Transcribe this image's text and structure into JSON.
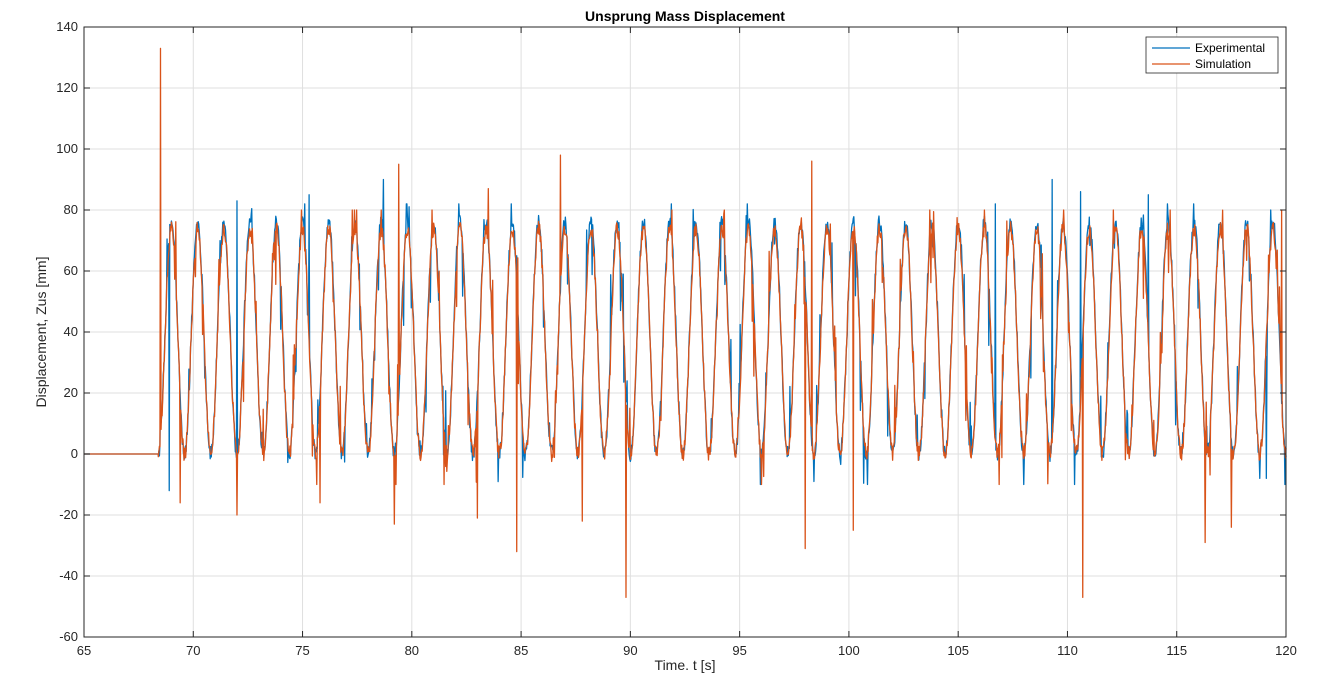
{
  "chart_data": {
    "type": "line",
    "title": "Unsprung Mass Displacement",
    "xlabel": "Time. t [s]",
    "ylabel": "Displacement, Zus [mm]",
    "xlim": [
      65,
      120
    ],
    "ylim": [
      -60,
      140
    ],
    "xticks": [
      65,
      70,
      75,
      80,
      85,
      90,
      95,
      100,
      105,
      110,
      115,
      120
    ],
    "yticks": [
      -60,
      -40,
      -20,
      0,
      20,
      40,
      60,
      80,
      100,
      120,
      140
    ],
    "grid": true,
    "legend_position": "top-right",
    "series": [
      {
        "name": "Experimental",
        "color": "#0072BD",
        "signal": {
          "flat_until": 68.4,
          "flat_value": 0,
          "start": 68.4,
          "end": 120,
          "period": 1.2,
          "min": 0,
          "max": 76,
          "peaks": [
            [
              72.0,
              83
            ],
            [
              75.3,
              85
            ],
            [
              78.7,
              90
            ],
            [
              106.7,
              82
            ],
            [
              109.3,
              90
            ],
            [
              110.6,
              86
            ],
            [
              113.7,
              85
            ],
            [
              119.3,
              80
            ]
          ],
          "troughs": [
            [
              68.9,
              -12
            ],
            [
              98.4,
              -9
            ],
            [
              118.8,
              -8
            ],
            [
              119.1,
              -8
            ]
          ]
        }
      },
      {
        "name": "Simulation",
        "color": "#D95319",
        "signal": {
          "flat_until": 68.4,
          "flat_value": 0,
          "start": 68.4,
          "end": 120,
          "period": 1.2,
          "min": 0,
          "max": 74,
          "peaks": [
            [
              68.5,
              133
            ],
            [
              79.4,
              95
            ],
            [
              83.5,
              87
            ],
            [
              86.8,
              98
            ],
            [
              98.3,
              96
            ],
            [
              119.8,
              80
            ]
          ],
          "troughs": [
            [
              69.4,
              -16
            ],
            [
              72.0,
              -20
            ],
            [
              75.8,
              -16
            ],
            [
              79.2,
              -23
            ],
            [
              83.0,
              -21
            ],
            [
              84.8,
              -32
            ],
            [
              87.8,
              -22
            ],
            [
              89.8,
              -47
            ],
            [
              98.0,
              -31
            ],
            [
              100.2,
              -25
            ],
            [
              110.7,
              -47
            ],
            [
              116.3,
              -29
            ],
            [
              117.5,
              -24
            ]
          ]
        }
      }
    ]
  }
}
